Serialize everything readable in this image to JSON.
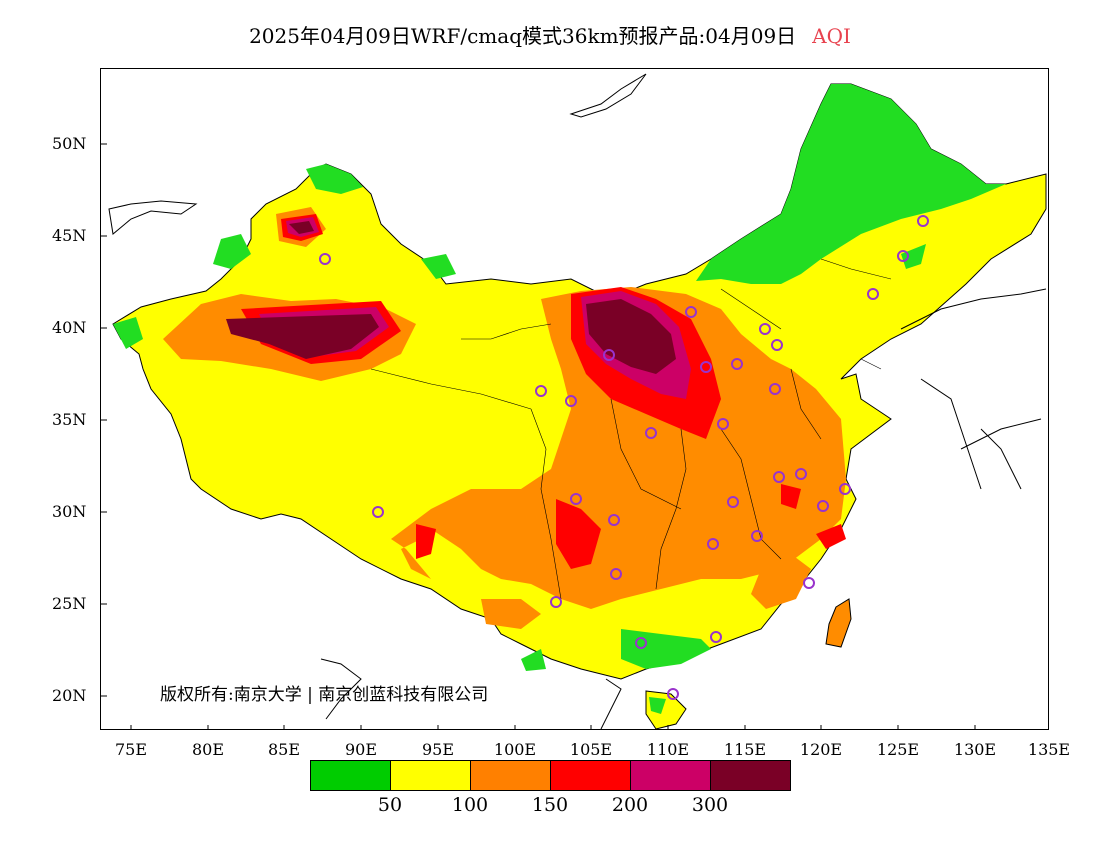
{
  "title": {
    "main": "2025年04月09日WRF/cmaq模式36km预报产品:04月09日",
    "variable": "AQI"
  },
  "axes": {
    "y_labels": [
      "50N",
      "45N",
      "40N",
      "35N",
      "30N",
      "25N",
      "20N"
    ],
    "x_labels": [
      "75E",
      "80E",
      "85E",
      "90E",
      "95E",
      "100E",
      "105E",
      "110E",
      "115E",
      "120E",
      "125E",
      "130E",
      "135E"
    ]
  },
  "copyright": "版权所有:南京大学 | 南京创蓝科技有限公司",
  "legend": {
    "colors": [
      "#00cc00",
      "#ffff00",
      "#ff8000",
      "#ff0000",
      "#cc0066",
      "#7a0026"
    ],
    "labels": [
      "50",
      "100",
      "150",
      "200",
      "300"
    ]
  },
  "map": {
    "land_color": "#ffff00",
    "colors": {
      "good": "#22dd22",
      "moderate": "#ffff00",
      "sensitive": "#ff8c00",
      "unhealthy": "#ff0000",
      "very_unhealthy": "#cc0066",
      "hazardous": "#7a0026",
      "marker": "#9933cc"
    }
  }
}
